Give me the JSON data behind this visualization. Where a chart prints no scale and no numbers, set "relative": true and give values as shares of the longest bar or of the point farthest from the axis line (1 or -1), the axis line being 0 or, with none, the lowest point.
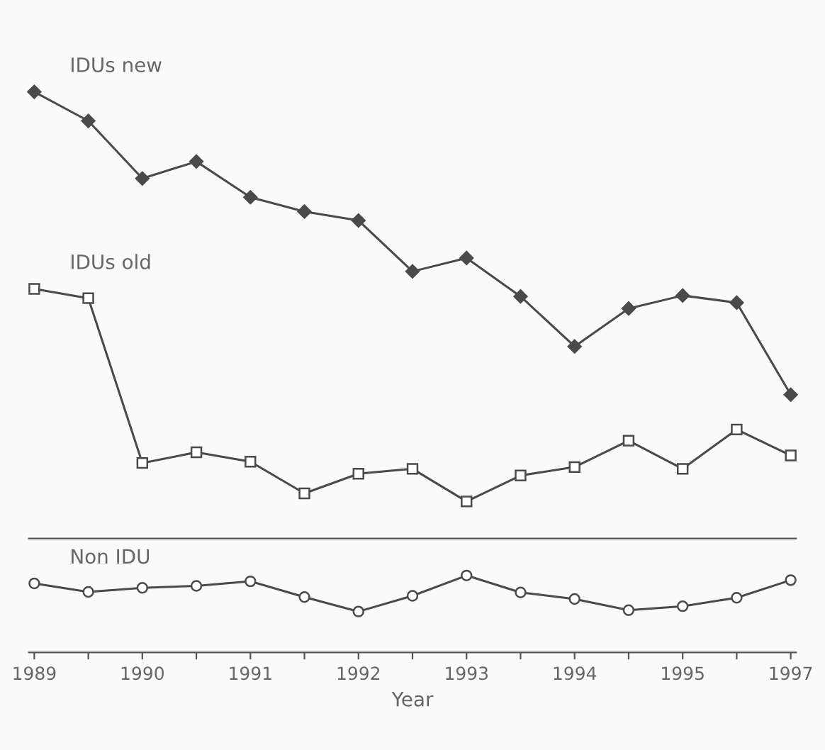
{
  "chart_data": [
    {
      "type": "line",
      "relative": true,
      "tick_labels": false,
      "legend": false,
      "grid": false,
      "categories": [
        "1989",
        null,
        "1990",
        null,
        "1991",
        null,
        "1992",
        null,
        "1993",
        null,
        "1994",
        null,
        "1995",
        null,
        "1997"
      ],
      "series": [
        {
          "name": "IDUs new",
          "color": "#4a4a4a",
          "marker": "diamond",
          "values": [
            1,
            0.935,
            0.806,
            0.844,
            0.764,
            0.732,
            0.712,
            0.598,
            0.628,
            0.542,
            0.43,
            0.515,
            0.544,
            0.528,
            0.322
          ]
        },
        {
          "name": "IDUs old",
          "color": "#4a4a4a",
          "marker": "square",
          "values": [
            0.559,
            0.538,
            0.169,
            0.193,
            0.172,
            0.101,
            0.145,
            0.156,
            0.083,
            0.141,
            0.16,
            0.219,
            0.156,
            0.244,
            0.186
          ]
        }
      ]
    },
    {
      "type": "line",
      "relative": true,
      "tick_labels": "x",
      "legend": false,
      "grid": false,
      "xlabel": "Year",
      "categories": [
        "1989",
        null,
        "1990",
        null,
        "1991",
        null,
        "1992",
        null,
        "1993",
        null,
        "1994",
        null,
        "1995",
        null,
        "1997"
      ],
      "series": [
        {
          "name": "Non IDU",
          "color": "#4a4a4a",
          "marker": "circle",
          "values": [
            0.897,
            0.787,
            0.839,
            0.865,
            0.924,
            0.72,
            0.532,
            0.736,
            1,
            0.78,
            0.695,
            0.55,
            0.601,
            0.711,
            0.94
          ]
        }
      ]
    }
  ]
}
